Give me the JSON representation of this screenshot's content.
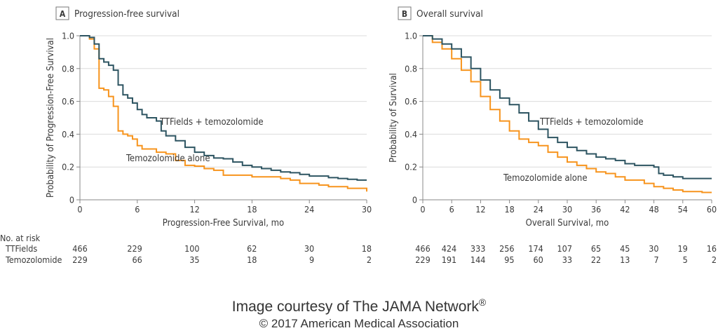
{
  "chart_data": [
    {
      "type": "line",
      "panel_label": "A",
      "title": "Progression-free survival",
      "xlabel": "Progression-Free Survival, mo",
      "ylabel": "Probability of Progression-Free Survival",
      "xlim": [
        0,
        30
      ],
      "ylim": [
        0,
        1.0
      ],
      "xticks": [
        0,
        6,
        12,
        18,
        24,
        30
      ],
      "yticks": [
        "0",
        "0.2",
        "0.4",
        "0.6",
        "0.8",
        "1.0"
      ],
      "grid": true,
      "series": [
        {
          "name": "TTFields + temozolomide",
          "color": "#2d5461",
          "x": [
            0,
            1,
            1.5,
            2,
            2.5,
            3,
            3.5,
            4,
            4.5,
            5,
            5.5,
            6,
            6.5,
            7,
            7.5,
            8,
            8.5,
            9,
            10,
            11,
            12,
            13,
            14,
            15,
            16,
            17,
            18,
            19,
            20,
            21,
            22,
            23,
            24,
            25,
            26,
            27,
            28,
            29,
            30
          ],
          "y": [
            1.0,
            0.99,
            0.95,
            0.86,
            0.84,
            0.82,
            0.79,
            0.7,
            0.64,
            0.62,
            0.59,
            0.55,
            0.52,
            0.5,
            0.5,
            0.48,
            0.42,
            0.39,
            0.36,
            0.32,
            0.29,
            0.27,
            0.255,
            0.25,
            0.23,
            0.21,
            0.2,
            0.19,
            0.18,
            0.17,
            0.165,
            0.155,
            0.145,
            0.145,
            0.135,
            0.13,
            0.125,
            0.12,
            0.12
          ]
        },
        {
          "name": "Temozolomide alone",
          "color": "#f7941d",
          "x": [
            0,
            1,
            1.5,
            2,
            2.5,
            3,
            3.5,
            4,
            4.5,
            5,
            5.5,
            6,
            6.5,
            7,
            7.5,
            8,
            9,
            10,
            11,
            12,
            13,
            14,
            15,
            16,
            17,
            18,
            19,
            20,
            21,
            22,
            23,
            24,
            25,
            26,
            27,
            28,
            29,
            30
          ],
          "y": [
            1.0,
            0.98,
            0.92,
            0.68,
            0.67,
            0.63,
            0.57,
            0.42,
            0.4,
            0.39,
            0.37,
            0.33,
            0.31,
            0.31,
            0.31,
            0.29,
            0.28,
            0.24,
            0.21,
            0.205,
            0.19,
            0.18,
            0.15,
            0.15,
            0.15,
            0.14,
            0.14,
            0.14,
            0.13,
            0.12,
            0.1,
            0.1,
            0.09,
            0.08,
            0.08,
            0.07,
            0.07,
            0.05
          ]
        }
      ],
      "annotations": [
        "TTFields + temozolomide",
        "Temozolomide alone"
      ],
      "risk_table": {
        "header": "No. at risk",
        "rows": [
          {
            "label": "TTFields",
            "values": [
              "466",
              "229",
              "100",
              "62",
              "30",
              "18"
            ]
          },
          {
            "label": "Temozolomide",
            "values": [
              "229",
              "66",
              "35",
              "18",
              "9",
              "2"
            ]
          }
        ]
      }
    },
    {
      "type": "line",
      "panel_label": "B",
      "title": "Overall survival",
      "xlabel": "Overall Survival, mo",
      "ylabel": "Probability of Survival",
      "xlim": [
        0,
        60
      ],
      "ylim": [
        0,
        1.0
      ],
      "xticks": [
        0,
        6,
        12,
        18,
        24,
        30,
        36,
        42,
        48,
        54,
        60
      ],
      "yticks": [
        "0",
        "0.2",
        "0.4",
        "0.6",
        "0.8",
        "1.0"
      ],
      "grid": true,
      "series": [
        {
          "name": "TTFields + temozolomide",
          "color": "#2d5461",
          "x": [
            0,
            2,
            4,
            6,
            8,
            10,
            12,
            14,
            16,
            18,
            20,
            22,
            24,
            26,
            28,
            30,
            32,
            34,
            36,
            38,
            40,
            42,
            44,
            46,
            48,
            49,
            50,
            52,
            54,
            56,
            58,
            60
          ],
          "y": [
            1.0,
            0.98,
            0.95,
            0.92,
            0.87,
            0.8,
            0.73,
            0.67,
            0.62,
            0.58,
            0.53,
            0.48,
            0.43,
            0.38,
            0.35,
            0.32,
            0.3,
            0.28,
            0.26,
            0.25,
            0.24,
            0.22,
            0.21,
            0.21,
            0.2,
            0.16,
            0.15,
            0.14,
            0.13,
            0.13,
            0.13,
            0.13
          ]
        },
        {
          "name": "Temozolomide alone",
          "color": "#f7941d",
          "x": [
            0,
            2,
            4,
            6,
            8,
            10,
            12,
            14,
            16,
            18,
            20,
            22,
            24,
            26,
            28,
            30,
            32,
            34,
            36,
            38,
            40,
            42,
            44,
            46,
            48,
            50,
            52,
            54,
            56,
            58,
            60
          ],
          "y": [
            1.0,
            0.96,
            0.92,
            0.86,
            0.79,
            0.72,
            0.63,
            0.55,
            0.48,
            0.42,
            0.37,
            0.35,
            0.33,
            0.29,
            0.26,
            0.23,
            0.21,
            0.19,
            0.17,
            0.16,
            0.14,
            0.12,
            0.12,
            0.1,
            0.08,
            0.07,
            0.06,
            0.05,
            0.05,
            0.045,
            0.045
          ]
        }
      ],
      "annotations": [
        "TTFields + temozolomide",
        "Temozolomide alone"
      ],
      "risk_table": {
        "rows": [
          {
            "label": "TTFields",
            "values": [
              "466",
              "424",
              "333",
              "256",
              "174",
              "107",
              "65",
              "45",
              "30",
              "19",
              "16"
            ]
          },
          {
            "label": "Temozolomide",
            "values": [
              "229",
              "191",
              "144",
              "95",
              "60",
              "33",
              "22",
              "13",
              "7",
              "5",
              "2"
            ]
          }
        ]
      }
    }
  ],
  "footer": {
    "courtesy": "Image courtesy of The JAMA Network",
    "registered": "®",
    "copyright": "© 2017 American Medical Association"
  }
}
